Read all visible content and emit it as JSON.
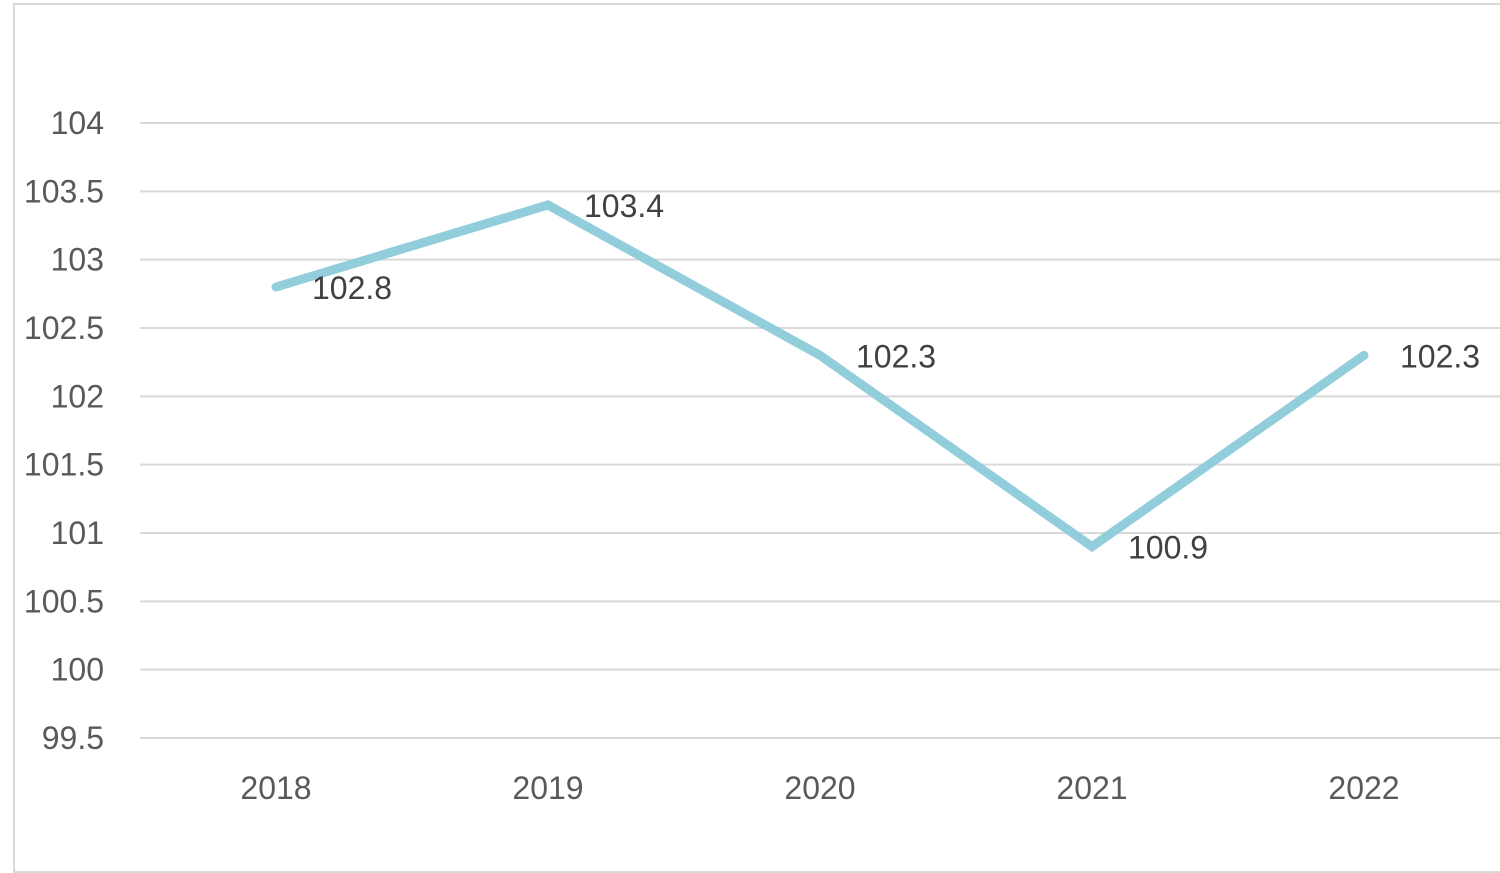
{
  "chart_data": {
    "type": "line",
    "title": "",
    "xlabel": "",
    "ylabel": "",
    "categories": [
      "2018",
      "2019",
      "2020",
      "2021",
      "2022"
    ],
    "series": [
      {
        "values": [
          102.8,
          103.4,
          102.3,
          100.9,
          102.3
        ],
        "color": "#92cddc"
      }
    ],
    "ylim": [
      99.5,
      104
    ],
    "yticks": [
      99.5,
      100,
      100.5,
      101,
      101.5,
      102,
      102.5,
      103,
      103.5,
      104
    ],
    "ytick_labels": [
      "99.5",
      "100",
      "100.5",
      "101",
      "101.5",
      "102",
      "102.5",
      "103",
      "103.5",
      "104"
    ],
    "data_labels": [
      "102.8",
      "103.4",
      "102.3",
      "100.9",
      "102.3"
    ],
    "grid": true,
    "legend": "none"
  }
}
